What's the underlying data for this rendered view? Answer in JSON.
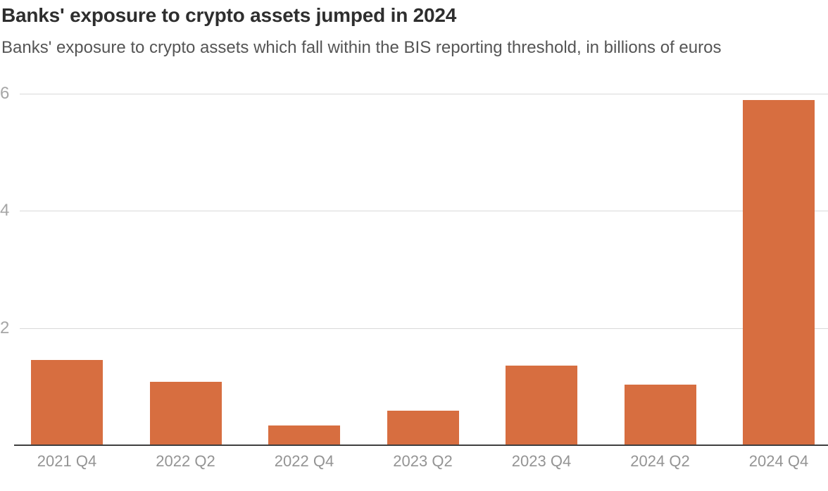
{
  "header": {
    "title": "Banks' exposure to crypto assets jumped in 2024",
    "subtitle": "Banks' exposure to crypto assets which fall within the BIS reporting threshold, in billions of euros"
  },
  "chart_data": {
    "type": "bar",
    "title": "Banks' exposure to crypto assets jumped in 2024",
    "subtitle": "Banks' exposure to crypto assets which fall within the BIS reporting threshold, in billions of euros",
    "categories": [
      "2021 Q4",
      "2022 Q2",
      "2022 Q4",
      "2023 Q2",
      "2023 Q4",
      "2024 Q2",
      "2024 Q4"
    ],
    "values": [
      1.45,
      1.08,
      0.34,
      0.59,
      1.36,
      1.04,
      5.89
    ],
    "xlabel": "",
    "ylabel": "billions of euros",
    "ylim": [
      0,
      6
    ],
    "yticks": [
      2,
      4,
      6
    ],
    "grid": true,
    "legend": false
  },
  "colors": {
    "bar": "#D76E40",
    "title_text": "#2E2E2E",
    "subtitle_text": "#555555",
    "y_tick_text": "#A6A6A6",
    "x_tick_text": "#949494",
    "gridline": "#D9D9D9",
    "axis_line": "#3F3F3F",
    "background": "#FFFFFF"
  }
}
